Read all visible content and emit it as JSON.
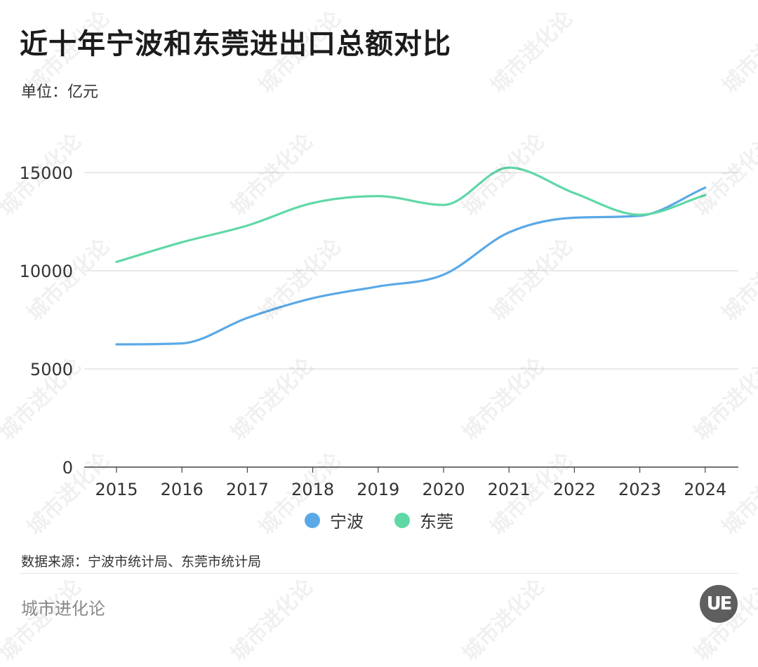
{
  "header": {
    "title": "近十年宁波和东莞进出口总额对比",
    "unit": "单位：亿元"
  },
  "chart_data": {
    "type": "line",
    "title": "近十年宁波和东莞进出口总额对比",
    "ylabel": "单位：亿元",
    "x": [
      "2015",
      "2016",
      "2017",
      "2018",
      "2019",
      "2020",
      "2021",
      "2022",
      "2023",
      "2024"
    ],
    "yticks": [
      "0",
      "5000",
      "10000",
      "15000"
    ],
    "ylim": [
      0,
      16000
    ],
    "grid": true,
    "legend_position": "bottom",
    "series": [
      {
        "name": "宁波",
        "color": "#5aa9e6",
        "values": [
          6250,
          6300,
          7600,
          8600,
          9200,
          9800,
          11950,
          12700,
          12800,
          14230
        ]
      },
      {
        "name": "东莞",
        "color": "#5fd8a6",
        "values": [
          10450,
          11450,
          12300,
          13450,
          13800,
          13350,
          15250,
          13950,
          12850,
          13850
        ]
      }
    ]
  },
  "footer": {
    "source": "数据来源：宁波市统计局、东莞市统计局",
    "brand": "城市进化论",
    "logo_text": "UE"
  },
  "watermark": "城市进化论"
}
